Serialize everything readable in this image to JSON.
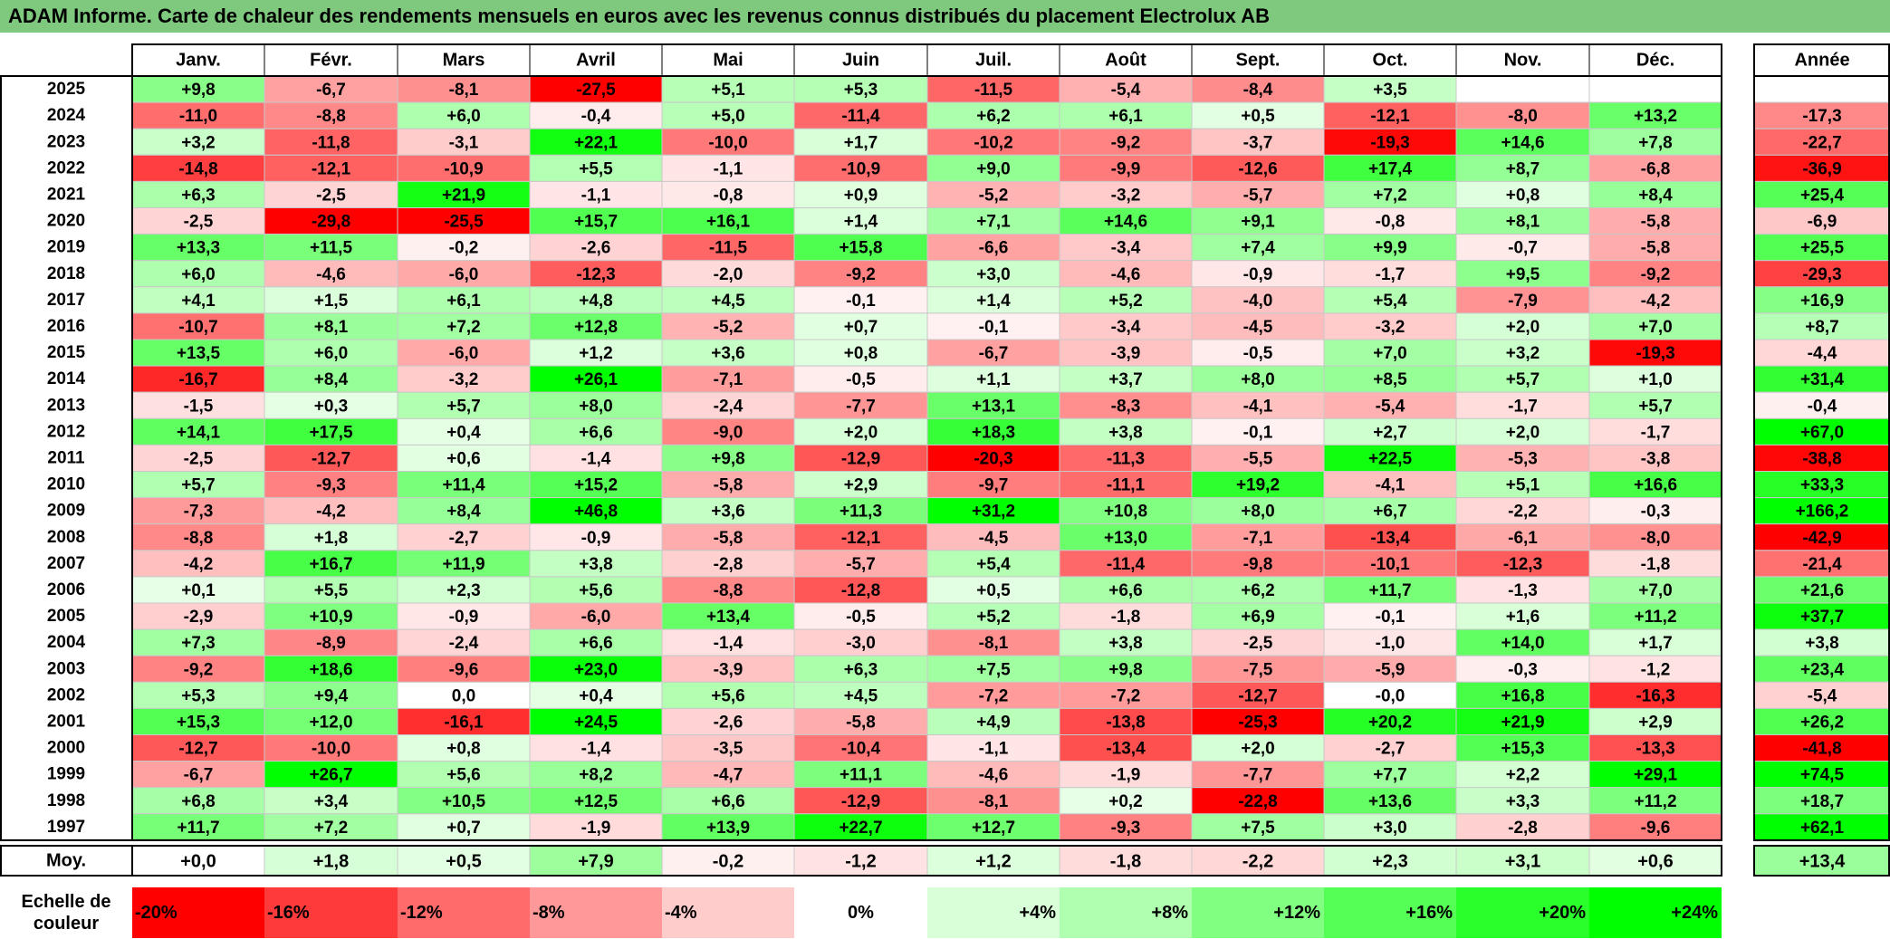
{
  "title": "ADAM Informe. Carte de chaleur des rendements mensuels en euros avec les revenus connus distribués du placement Electrolux AB",
  "chart_data": {
    "type": "heatmap",
    "title": "ADAM Informe. Carte de chaleur des rendements mensuels en euros avec les revenus connus distribués du placement Electrolux AB",
    "months": [
      "Janv.",
      "Févr.",
      "Mars",
      "Avril",
      "Mai",
      "Juin",
      "Juil.",
      "Août",
      "Sept.",
      "Oct.",
      "Nov.",
      "Déc."
    ],
    "year_header": "Année",
    "average_label": "Moy.",
    "rows": [
      {
        "year": "2025",
        "values": [
          "+9,8",
          "-6,7",
          "-8,1",
          "-27,5",
          "+5,1",
          "+5,3",
          "-11,5",
          "-5,4",
          "-8,4",
          "+3,5",
          "",
          ""
        ],
        "annual": ""
      },
      {
        "year": "2024",
        "values": [
          "-11,0",
          "-8,8",
          "+6,0",
          "-0,4",
          "+5,0",
          "-11,4",
          "+6,2",
          "+6,1",
          "+0,5",
          "-12,1",
          "-8,0",
          "+13,2"
        ],
        "annual": "-17,3"
      },
      {
        "year": "2023",
        "values": [
          "+3,2",
          "-11,8",
          "-3,1",
          "+22,1",
          "-10,0",
          "+1,7",
          "-10,2",
          "-9,2",
          "-3,7",
          "-19,3",
          "+14,6",
          "+7,8"
        ],
        "annual": "-22,7"
      },
      {
        "year": "2022",
        "values": [
          "-14,8",
          "-12,1",
          "-10,9",
          "+5,5",
          "-1,1",
          "-10,9",
          "+9,0",
          "-9,9",
          "-12,6",
          "+17,4",
          "+8,7",
          "-6,8"
        ],
        "annual": "-36,9"
      },
      {
        "year": "2021",
        "values": [
          "+6,3",
          "-2,5",
          "+21,9",
          "-1,1",
          "-0,8",
          "+0,9",
          "-5,2",
          "-3,2",
          "-5,7",
          "+7,2",
          "+0,8",
          "+8,4"
        ],
        "annual": "+25,4"
      },
      {
        "year": "2020",
        "values": [
          "-2,5",
          "-29,8",
          "-25,5",
          "+15,7",
          "+16,1",
          "+1,4",
          "+7,1",
          "+14,6",
          "+9,1",
          "-0,8",
          "+8,1",
          "-5,8"
        ],
        "annual": "-6,9"
      },
      {
        "year": "2019",
        "values": [
          "+13,3",
          "+11,5",
          "-0,2",
          "-2,6",
          "-11,5",
          "+15,8",
          "-6,6",
          "-3,4",
          "+7,4",
          "+9,9",
          "-0,7",
          "-5,8"
        ],
        "annual": "+25,5"
      },
      {
        "year": "2018",
        "values": [
          "+6,0",
          "-4,6",
          "-6,0",
          "-12,3",
          "-2,0",
          "-9,2",
          "+3,0",
          "-4,6",
          "-0,9",
          "-1,7",
          "+9,5",
          "-9,2"
        ],
        "annual": "-29,3"
      },
      {
        "year": "2017",
        "values": [
          "+4,1",
          "+1,5",
          "+6,1",
          "+4,8",
          "+4,5",
          "-0,1",
          "+1,4",
          "+5,2",
          "-4,0",
          "+5,4",
          "-7,9",
          "-4,2"
        ],
        "annual": "+16,9"
      },
      {
        "year": "2016",
        "values": [
          "-10,7",
          "+8,1",
          "+7,2",
          "+12,8",
          "-5,2",
          "+0,7",
          "-0,1",
          "-3,4",
          "-4,5",
          "-3,2",
          "+2,0",
          "+7,0"
        ],
        "annual": "+8,7"
      },
      {
        "year": "2015",
        "values": [
          "+13,5",
          "+6,0",
          "-6,0",
          "+1,2",
          "+3,6",
          "+0,8",
          "-6,7",
          "-3,9",
          "-0,5",
          "+7,0",
          "+3,2",
          "-19,3"
        ],
        "annual": "-4,4"
      },
      {
        "year": "2014",
        "values": [
          "-16,7",
          "+8,4",
          "-3,2",
          "+26,1",
          "-7,1",
          "-0,5",
          "+1,1",
          "+3,7",
          "+8,0",
          "+8,5",
          "+5,7",
          "+1,0"
        ],
        "annual": "+31,4"
      },
      {
        "year": "2013",
        "values": [
          "-1,5",
          "+0,3",
          "+5,7",
          "+8,0",
          "-2,4",
          "-7,7",
          "+13,1",
          "-8,3",
          "-4,1",
          "-5,4",
          "-1,7",
          "+5,7"
        ],
        "annual": "-0,4"
      },
      {
        "year": "2012",
        "values": [
          "+14,1",
          "+17,5",
          "+0,4",
          "+6,6",
          "-9,0",
          "+2,0",
          "+18,3",
          "+3,8",
          "-0,1",
          "+2,7",
          "+2,0",
          "-1,7"
        ],
        "annual": "+67,0"
      },
      {
        "year": "2011",
        "values": [
          "-2,5",
          "-12,7",
          "+0,6",
          "-1,4",
          "+9,8",
          "-12,9",
          "-20,3",
          "-11,3",
          "-5,5",
          "+22,5",
          "-5,3",
          "-3,8"
        ],
        "annual": "-38,8"
      },
      {
        "year": "2010",
        "values": [
          "+5,7",
          "-9,3",
          "+11,4",
          "+15,2",
          "-5,8",
          "+2,9",
          "-9,7",
          "-11,1",
          "+19,2",
          "-4,1",
          "+5,1",
          "+16,6"
        ],
        "annual": "+33,3"
      },
      {
        "year": "2009",
        "values": [
          "-7,3",
          "-4,2",
          "+8,4",
          "+46,8",
          "+3,6",
          "+11,3",
          "+31,2",
          "+10,8",
          "+8,0",
          "+6,7",
          "-2,2",
          "-0,3"
        ],
        "annual": "+166,2"
      },
      {
        "year": "2008",
        "values": [
          "-8,8",
          "+1,8",
          "-2,7",
          "-0,9",
          "-5,8",
          "-12,1",
          "-4,5",
          "+13,0",
          "-7,1",
          "-13,4",
          "-6,1",
          "-8,0"
        ],
        "annual": "-42,9"
      },
      {
        "year": "2007",
        "values": [
          "-4,2",
          "+16,7",
          "+11,9",
          "+3,8",
          "-2,8",
          "-5,7",
          "+5,4",
          "-11,4",
          "-9,8",
          "-10,1",
          "-12,3",
          "-1,8"
        ],
        "annual": "-21,4"
      },
      {
        "year": "2006",
        "values": [
          "+0,1",
          "+5,5",
          "+2,3",
          "+5,6",
          "-8,8",
          "-12,8",
          "+0,5",
          "+6,6",
          "+6,2",
          "+11,7",
          "-1,3",
          "+7,0"
        ],
        "annual": "+21,6"
      },
      {
        "year": "2005",
        "values": [
          "-2,9",
          "+10,9",
          "-0,9",
          "-6,0",
          "+13,4",
          "-0,5",
          "+5,2",
          "-1,8",
          "+6,9",
          "-0,1",
          "+1,6",
          "+11,2"
        ],
        "annual": "+37,7"
      },
      {
        "year": "2004",
        "values": [
          "+7,3",
          "-8,9",
          "-2,4",
          "+6,6",
          "-1,4",
          "-3,0",
          "-8,1",
          "+3,8",
          "-2,5",
          "-1,0",
          "+14,0",
          "+1,7"
        ],
        "annual": "+3,8"
      },
      {
        "year": "2003",
        "values": [
          "-9,2",
          "+18,6",
          "-9,6",
          "+23,0",
          "-3,9",
          "+6,3",
          "+7,5",
          "+9,8",
          "-7,5",
          "-5,9",
          "-0,3",
          "-1,2"
        ],
        "annual": "+23,4"
      },
      {
        "year": "2002",
        "values": [
          "+5,3",
          "+9,4",
          "0,0",
          "+0,4",
          "+5,6",
          "+4,5",
          "-7,2",
          "-7,2",
          "-12,7",
          "-0,0",
          "+16,8",
          "-16,3"
        ],
        "annual": "-5,4"
      },
      {
        "year": "2001",
        "values": [
          "+15,3",
          "+12,0",
          "-16,1",
          "+24,5",
          "-2,6",
          "-5,8",
          "+4,9",
          "-13,8",
          "-25,3",
          "+20,2",
          "+21,9",
          "+2,9"
        ],
        "annual": "+26,2"
      },
      {
        "year": "2000",
        "values": [
          "-12,7",
          "-10,0",
          "+0,8",
          "-1,4",
          "-3,5",
          "-10,4",
          "-1,1",
          "-13,4",
          "+2,0",
          "-2,7",
          "+15,3",
          "-13,3"
        ],
        "annual": "-41,8"
      },
      {
        "year": "1999",
        "values": [
          "-6,7",
          "+26,7",
          "+5,6",
          "+8,2",
          "-4,7",
          "+11,1",
          "-4,6",
          "-1,9",
          "-7,7",
          "+7,7",
          "+2,2",
          "+29,1"
        ],
        "annual": "+74,5"
      },
      {
        "year": "1998",
        "values": [
          "+6,8",
          "+3,4",
          "+10,5",
          "+12,5",
          "+6,6",
          "-12,9",
          "-8,1",
          "+0,2",
          "-22,8",
          "+13,6",
          "+3,3",
          "+11,2"
        ],
        "annual": "+18,7"
      },
      {
        "year": "1997",
        "values": [
          "+11,7",
          "+7,2",
          "+0,7",
          "-1,9",
          "+13,9",
          "+22,7",
          "+12,7",
          "-9,3",
          "+7,5",
          "+3,0",
          "-2,8",
          "-9,6"
        ],
        "annual": "+62,1"
      }
    ],
    "average": {
      "values": [
        "+0,0",
        "+1,8",
        "+0,5",
        "+7,9",
        "-0,2",
        "-1,2",
        "+1,2",
        "-1,8",
        "-2,2",
        "+2,3",
        "+3,1",
        "+0,6"
      ],
      "annual": "+13,4"
    },
    "color_scale": {
      "label": "Echelle de couleur",
      "steps": [
        "-20%",
        "-16%",
        "-12%",
        "-8%",
        "-4%",
        "0%",
        "+4%",
        "+8%",
        "+12%",
        "+16%",
        "+20%",
        "+24%"
      ],
      "colors": [
        "#ff0000",
        "#ff3a3a",
        "#ff6a6a",
        "#ff9999",
        "#ffcccc",
        "#ffffff",
        "#d9ffd9",
        "#b0ffb0",
        "#80ff80",
        "#55ff55",
        "#2bff2b",
        "#00ff00"
      ]
    }
  }
}
